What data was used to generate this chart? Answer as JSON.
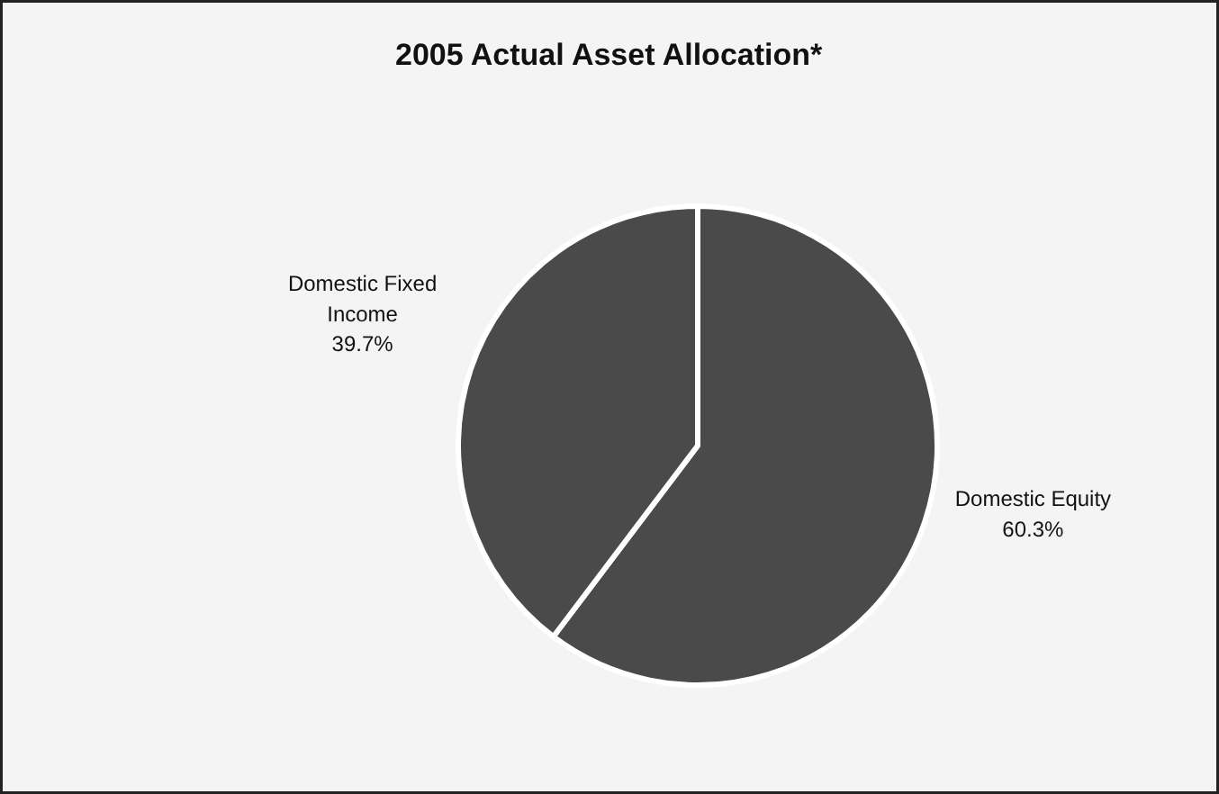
{
  "chart_data": {
    "type": "pie",
    "title": "2005 Actual Asset Allocation*",
    "categories": [
      "Domestic Equity",
      "Domestic Fixed Income"
    ],
    "values": [
      60.3,
      39.7
    ],
    "colors": [
      "#4a4a4a",
      "#4a4a4a"
    ],
    "value_labels": [
      "60.3%",
      "39.7%"
    ],
    "legend": false
  }
}
